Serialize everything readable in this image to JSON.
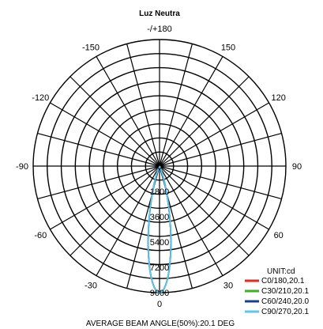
{
  "chart_data": {
    "type": "polar",
    "title": "Luz Neutra",
    "angle_labels": [
      {
        "angle": 180,
        "text": "-/+180"
      },
      {
        "angle": 150,
        "text": "150"
      },
      {
        "angle": -150,
        "text": "-150"
      },
      {
        "angle": 120,
        "text": "120"
      },
      {
        "angle": -120,
        "text": "-120"
      },
      {
        "angle": 90,
        "text": "90"
      },
      {
        "angle": -90,
        "text": "-90"
      },
      {
        "angle": 60,
        "text": "60"
      },
      {
        "angle": -60,
        "text": "-60"
      },
      {
        "angle": 30,
        "text": "30"
      },
      {
        "angle": -30,
        "text": "-30"
      },
      {
        "angle": 0,
        "text": "0"
      }
    ],
    "radial_ticks": [
      "0",
      "1800",
      "3600",
      "5400",
      "7200",
      "9000"
    ],
    "radial_max": 9000,
    "ring_values": [
      1000,
      2000,
      3000,
      4000,
      5000,
      6000,
      7000,
      8000,
      9000
    ],
    "spoke_step_deg": 15,
    "unit_label": "UNIT:cd",
    "series": [
      {
        "name": "C0/180,20.1",
        "color": "#e8281e",
        "peak": 9000,
        "half_angle": 10.05
      },
      {
        "name": "C30/210,20.1",
        "color": "#3fae2a",
        "peak": 9000,
        "half_angle": 10.05
      },
      {
        "name": "C60/240,20.0",
        "color": "#1e3f8f",
        "peak": 9000,
        "half_angle": 10.0
      },
      {
        "name": "C90/270,20.1",
        "color": "#5cc6ee",
        "peak": 9000,
        "half_angle": 10.05
      }
    ],
    "footer": "AVERAGE BEAM ANGLE(50%):20.1 DEG"
  }
}
